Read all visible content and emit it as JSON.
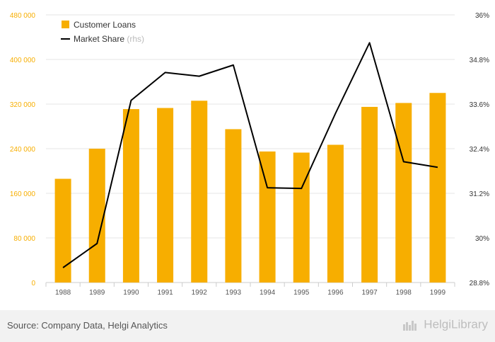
{
  "chart_data": {
    "type": "bar",
    "categories": [
      "1988",
      "1989",
      "1990",
      "1991",
      "1992",
      "1993",
      "1994",
      "1995",
      "1996",
      "1997",
      "1998",
      "1999"
    ],
    "series": [
      {
        "name": "Customer Loans",
        "type": "bar",
        "axis": "left",
        "color": "#f7ae00",
        "values": [
          186000,
          240000,
          311000,
          313000,
          326000,
          275000,
          235000,
          233000,
          247000,
          315000,
          322000,
          340000
        ]
      },
      {
        "name": "Market Share",
        "legend_suffix": "(rhs)",
        "type": "line",
        "axis": "right",
        "color": "#000000",
        "values": [
          29.2,
          29.85,
          33.7,
          34.45,
          34.35,
          34.65,
          31.35,
          31.33,
          33.35,
          35.25,
          32.05,
          31.9
        ]
      }
    ],
    "y_left": {
      "ylim": [
        0,
        480000
      ],
      "ticks": [
        "0",
        "80 000",
        "160 000",
        "240 000",
        "320 000",
        "400 000",
        "480 000"
      ],
      "tick_color": "#f7ae00"
    },
    "y_right": {
      "ylim": [
        28.8,
        36
      ],
      "ticks": [
        "28.8%",
        "30%",
        "31.2%",
        "32.4%",
        "33.6%",
        "34.8%",
        "36%"
      ]
    },
    "grid": true,
    "legend_position": "top-left"
  },
  "footer": {
    "source": "Source: Company Data, Helgi Analytics",
    "brand": "HelgiLibrary"
  }
}
